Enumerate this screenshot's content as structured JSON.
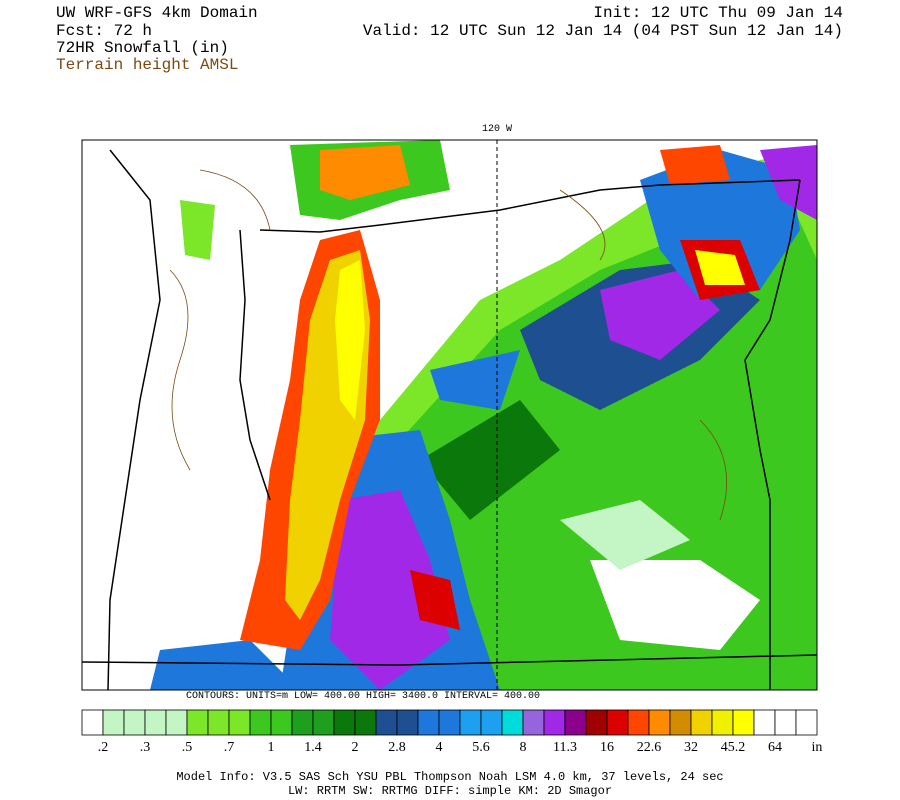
{
  "header": {
    "left": [
      "UW WRF-GFS 4km Domain",
      "Fcst:   72 h",
      "72HR Snowfall (in)"
    ],
    "terrain_label": "Terrain height AMSL",
    "init": "Init: 12 UTC Thu 09 Jan 14",
    "valid": "Valid: 12 UTC Sun 12 Jan 14 (04 PST Sun 12 Jan 14)"
  },
  "map": {
    "meridian_label": "120 W",
    "contour_info": "CONTOURS:  UNITS=m   LOW=   400.00   HIGH=  3400.0   INTERVAL=   400.00"
  },
  "colorbar": {
    "colors": [
      "#ffffff",
      "#c4f5c4",
      "#c4f5c4",
      "#c4f5c4",
      "#c4f5c4",
      "#7ce628",
      "#7ce628",
      "#7ce628",
      "#3cc81e",
      "#3cc81e",
      "#1ea01e",
      "#1ea01e",
      "#0a780a",
      "#0a780a",
      "#1e4f91",
      "#1e4f91",
      "#1e78dc",
      "#1e78dc",
      "#1ea0f0",
      "#1ea0f0",
      "#00dcdc",
      "#9664dc",
      "#a028e6",
      "#8c008c",
      "#a00000",
      "#dc0000",
      "#ff4600",
      "#ff8c00",
      "#d28c00",
      "#f0d200",
      "#f0f000",
      "#ffff00",
      "#ffffff",
      "#ffffff",
      "#ffffff"
    ],
    "labels": [
      ".2",
      ".3",
      ".5",
      ".7",
      "1",
      "1.4",
      "2",
      "2.8",
      "4",
      "5.6",
      "8",
      "11.3",
      "16",
      "22.6",
      "32",
      "45.2",
      "64"
    ],
    "unit": "in"
  },
  "footer": [
    "Model Info: V3.5     SAS Sch YSU PBL  Thompson    Noah LSM  4.0 km,  37 levels,   24 sec",
    "LW: RRTM  SW: RRTMG   DIFF: simple  KM: 2D Smagor"
  ]
}
